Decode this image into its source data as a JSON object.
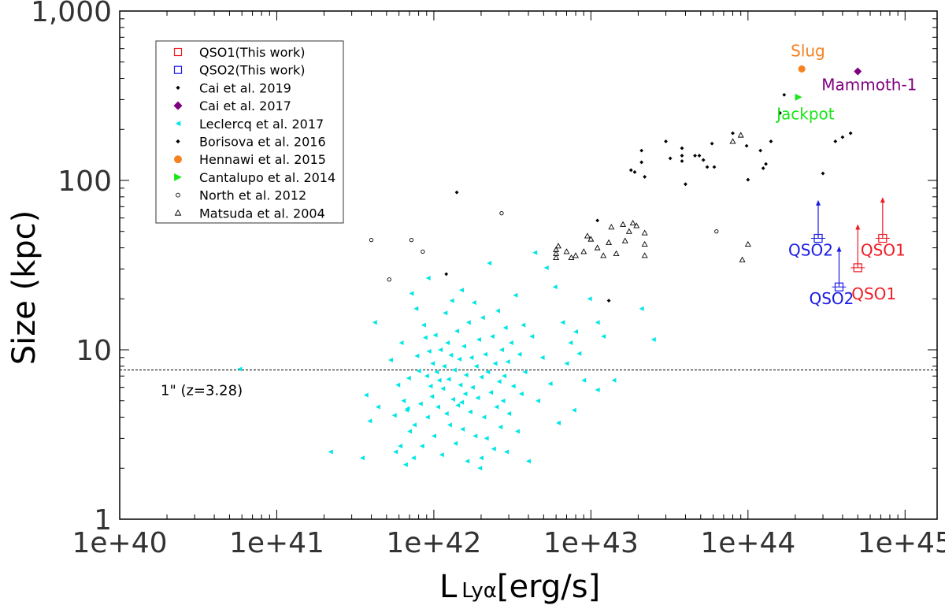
{
  "chart_data": {
    "type": "scatter",
    "xlabel": "L",
    "xlabel_sub": "Lyα",
    "xlabel_unit": "[erg/s]",
    "ylabel": "Size (kpc)",
    "x_scale": "log",
    "y_scale": "log",
    "xlim": [
      1e+40,
      1.6e+45
    ],
    "ylim": [
      1,
      1000
    ],
    "x_tick_labels": [
      "1e+40",
      "1e+41",
      "1e+42",
      "1e+43",
      "1e+44",
      "1e+45"
    ],
    "y_tick_labels": [
      "1",
      "10",
      "100",
      "1,000"
    ],
    "grid": false,
    "legend_position": "top-left",
    "reference_line": {
      "y": 7.6,
      "label": "1\" (z=3.28)"
    },
    "series": [
      {
        "name": "QSO1(This work)",
        "marker": "square-open",
        "color": "#ee1c25",
        "points": [
          {
            "x": 7.2e+44,
            "y": 45.5,
            "lower_limit_to": 78
          },
          {
            "x": 5e+44,
            "y": 30.5,
            "lower_limit_to": 54
          }
        ],
        "labels": [
          "QSO1",
          "QSO1"
        ]
      },
      {
        "name": "QSO2(This work)",
        "marker": "square-open",
        "color": "#1a1ae6",
        "points": [
          {
            "x": 2.8e+44,
            "y": 45.5,
            "lower_limit_to": 75
          },
          {
            "x": 3.8e+44,
            "y": 23.5,
            "lower_limit_to": 40
          }
        ],
        "labels": [
          "QSO2",
          "QSO2"
        ]
      },
      {
        "name": "Cai et al. 2019",
        "marker": "diamond-small",
        "color": "#000000",
        "points": [
          {
            "x": 1.4e+42,
            "y": 85
          },
          {
            "x": 1.2e+42,
            "y": 28
          },
          {
            "x": 1.1e+43,
            "y": 58
          },
          {
            "x": 1.3e+43,
            "y": 19.5
          },
          {
            "x": 3e+44,
            "y": 110
          },
          {
            "x": 4e+44,
            "y": 180
          },
          {
            "x": 3.6e+44,
            "y": 170
          },
          {
            "x": 4.5e+44,
            "y": 190
          },
          {
            "x": 1.7e+44,
            "y": 320
          }
        ]
      },
      {
        "name": "Cai et al. 2017",
        "marker": "diamond",
        "color": "#7f007f",
        "points": [
          {
            "x": 5e+44,
            "y": 440
          }
        ],
        "labels": [
          "Mammoth-1"
        ]
      },
      {
        "name": "Leclercq et al. 2017",
        "marker": "triangle-left",
        "color": "#00e6e6",
        "points": [
          {
            "x": 5.8e+40,
            "y": 7.7
          },
          {
            "x": 2.2e+41,
            "y": 2.5
          },
          {
            "x": 3.5e+41,
            "y": 2.3
          },
          {
            "x": 3.7e+41,
            "y": 5.4
          },
          {
            "x": 3.9e+41,
            "y": 3.8
          },
          {
            "x": 4.2e+41,
            "y": 14.5
          },
          {
            "x": 4.4e+41,
            "y": 4.6
          },
          {
            "x": 5.3e+41,
            "y": 8.7
          },
          {
            "x": 5.6e+41,
            "y": 4.1
          },
          {
            "x": 5.7e+41,
            "y": 2.5
          },
          {
            "x": 5.9e+41,
            "y": 6.2
          },
          {
            "x": 6.1e+41,
            "y": 2.7
          },
          {
            "x": 6.2e+41,
            "y": 11.0
          },
          {
            "x": 6.4e+41,
            "y": 5.0
          },
          {
            "x": 6.6e+41,
            "y": 2.1
          },
          {
            "x": 6.7e+41,
            "y": 4.4
          },
          {
            "x": 6.9e+41,
            "y": 6.8
          },
          {
            "x": 7e+41,
            "y": 3.3
          },
          {
            "x": 7.2e+41,
            "y": 21.5
          },
          {
            "x": 7.4e+41,
            "y": 2.3
          },
          {
            "x": 7.5e+41,
            "y": 3.6
          },
          {
            "x": 7.7e+41,
            "y": 17.5
          },
          {
            "x": 7.8e+41,
            "y": 9.2
          },
          {
            "x": 8e+41,
            "y": 7.5
          },
          {
            "x": 8.2e+41,
            "y": 4.8
          },
          {
            "x": 8.4e+41,
            "y": 2.7
          },
          {
            "x": 8.6e+41,
            "y": 14.0
          },
          {
            "x": 8.8e+41,
            "y": 11.8
          },
          {
            "x": 9e+41,
            "y": 7.0
          },
          {
            "x": 9.1e+41,
            "y": 4.0
          },
          {
            "x": 9.2e+41,
            "y": 26.5
          },
          {
            "x": 9.3e+41,
            "y": 9.8
          },
          {
            "x": 9.5e+41,
            "y": 6.1
          },
          {
            "x": 9.7e+41,
            "y": 5.3
          },
          {
            "x": 9.8e+41,
            "y": 8.3
          },
          {
            "x": 1e+42,
            "y": 3.1
          },
          {
            "x": 1.02e+42,
            "y": 12.2
          },
          {
            "x": 1.04e+42,
            "y": 7.4
          },
          {
            "x": 1.06e+42,
            "y": 4.6
          },
          {
            "x": 1.08e+42,
            "y": 6.6
          },
          {
            "x": 1.1e+42,
            "y": 10.0
          },
          {
            "x": 1.12e+42,
            "y": 2.4
          },
          {
            "x": 1.14e+42,
            "y": 5.9
          },
          {
            "x": 1.16e+42,
            "y": 8.0
          },
          {
            "x": 1.18e+42,
            "y": 16.5
          },
          {
            "x": 1.2e+42,
            "y": 4.2
          },
          {
            "x": 1.22e+42,
            "y": 11.0
          },
          {
            "x": 1.24e+42,
            "y": 6.7
          },
          {
            "x": 1.26e+42,
            "y": 3.6
          },
          {
            "x": 1.28e+42,
            "y": 9.3
          },
          {
            "x": 1.3e+42,
            "y": 19.5
          },
          {
            "x": 1.32e+42,
            "y": 5.1
          },
          {
            "x": 1.35e+42,
            "y": 7.6
          },
          {
            "x": 1.37e+42,
            "y": 2.8
          },
          {
            "x": 1.4e+42,
            "y": 12.9
          },
          {
            "x": 1.42e+42,
            "y": 4.7
          },
          {
            "x": 1.45e+42,
            "y": 8.8
          },
          {
            "x": 1.47e+42,
            "y": 6.2
          },
          {
            "x": 1.5e+42,
            "y": 22.5
          },
          {
            "x": 1.52e+42,
            "y": 3.4
          },
          {
            "x": 1.55e+42,
            "y": 10.5
          },
          {
            "x": 1.58e+42,
            "y": 5.5
          },
          {
            "x": 1.6e+42,
            "y": 7.1
          },
          {
            "x": 1.63e+42,
            "y": 2.2
          },
          {
            "x": 1.66e+42,
            "y": 14.5
          },
          {
            "x": 1.7e+42,
            "y": 4.3
          },
          {
            "x": 1.73e+42,
            "y": 9.0
          },
          {
            "x": 1.76e+42,
            "y": 6.0
          },
          {
            "x": 1.8e+42,
            "y": 19.0
          },
          {
            "x": 1.83e+42,
            "y": 3.1
          },
          {
            "x": 1.86e+42,
            "y": 8.0
          },
          {
            "x": 1.9e+42,
            "y": 5.2
          },
          {
            "x": 1.93e+42,
            "y": 11.5
          },
          {
            "x": 1.96e+42,
            "y": 2.0
          },
          {
            "x": 2e+42,
            "y": 6.9
          },
          {
            "x": 2.04e+42,
            "y": 15.5
          },
          {
            "x": 2.08e+42,
            "y": 4.0
          },
          {
            "x": 2.12e+42,
            "y": 9.4
          },
          {
            "x": 2.16e+42,
            "y": 3.0
          },
          {
            "x": 2.2e+42,
            "y": 7.4
          },
          {
            "x": 2.25e+42,
            "y": 32.5
          },
          {
            "x": 2.3e+42,
            "y": 5.6
          },
          {
            "x": 2.35e+42,
            "y": 12.0
          },
          {
            "x": 2.4e+42,
            "y": 2.6
          },
          {
            "x": 2.45e+42,
            "y": 8.3
          },
          {
            "x": 2.5e+42,
            "y": 4.6
          },
          {
            "x": 2.55e+42,
            "y": 17.0
          },
          {
            "x": 2.6e+42,
            "y": 6.5
          },
          {
            "x": 2.65e+42,
            "y": 3.5
          },
          {
            "x": 2.7e+42,
            "y": 10.0
          },
          {
            "x": 2.75e+42,
            "y": 5.0
          },
          {
            "x": 2.8e+42,
            "y": 7.0
          },
          {
            "x": 2.85e+42,
            "y": 13.5
          },
          {
            "x": 2.9e+42,
            "y": 2.5
          },
          {
            "x": 2.95e+42,
            "y": 8.5
          },
          {
            "x": 3e+42,
            "y": 4.2
          },
          {
            "x": 3.1e+42,
            "y": 11.0
          },
          {
            "x": 3.2e+42,
            "y": 6.1
          },
          {
            "x": 3.3e+42,
            "y": 21.0
          },
          {
            "x": 3.4e+42,
            "y": 3.3
          },
          {
            "x": 3.5e+42,
            "y": 9.4
          },
          {
            "x": 3.6e+42,
            "y": 5.5
          },
          {
            "x": 3.7e+42,
            "y": 14.0
          },
          {
            "x": 3.8e+42,
            "y": 7.4
          },
          {
            "x": 4e+42,
            "y": 2.2
          },
          {
            "x": 4.2e+42,
            "y": 12.0
          },
          {
            "x": 4.4e+42,
            "y": 37.5
          },
          {
            "x": 4.6e+42,
            "y": 5.0
          },
          {
            "x": 4.9e+42,
            "y": 9.0
          },
          {
            "x": 5.2e+42,
            "y": 30.5
          },
          {
            "x": 5.5e+42,
            "y": 6.3
          },
          {
            "x": 5.9e+42,
            "y": 23.5
          },
          {
            "x": 6.2e+42,
            "y": 3.7
          },
          {
            "x": 6.6e+42,
            "y": 14.5
          },
          {
            "x": 7e+42,
            "y": 8.3
          },
          {
            "x": 7.4e+42,
            "y": 11.0
          },
          {
            "x": 7.8e+42,
            "y": 4.4
          },
          {
            "x": 8.4e+42,
            "y": 9.5
          },
          {
            "x": 9e+42,
            "y": 6.6
          },
          {
            "x": 9.8e+42,
            "y": 20.0
          },
          {
            "x": 1.1e+43,
            "y": 5.8
          },
          {
            "x": 1.2e+43,
            "y": 12.0
          },
          {
            "x": 1.4e+43,
            "y": 6.6
          },
          {
            "x": 2.1e+43,
            "y": 17.5
          },
          {
            "x": 2.5e+43,
            "y": 11.5
          },
          {
            "x": 1.1e+43,
            "y": 14.5
          },
          {
            "x": 8e+42,
            "y": 12.8
          },
          {
            "x": 1.5e+42,
            "y": 4.9
          },
          {
            "x": 6.8e+41,
            "y": 4.5
          },
          {
            "x": 2e+42,
            "y": 2.3
          }
        ]
      },
      {
        "name": "Borisova et al. 2016",
        "marker": "diamond-small",
        "color": "#000000",
        "points": [
          {
            "x": 1.8e+43,
            "y": 115
          },
          {
            "x": 2.2e+43,
            "y": 105
          },
          {
            "x": 2.1e+43,
            "y": 128
          },
          {
            "x": 2.1e+43,
            "y": 150
          },
          {
            "x": 3.2e+43,
            "y": 135
          },
          {
            "x": 3e+43,
            "y": 170
          },
          {
            "x": 3.8e+43,
            "y": 155
          },
          {
            "x": 4e+43,
            "y": 95
          },
          {
            "x": 4.6e+43,
            "y": 140
          },
          {
            "x": 4.9e+43,
            "y": 140
          },
          {
            "x": 5.2e+43,
            "y": 132
          },
          {
            "x": 5.5e+43,
            "y": 120
          },
          {
            "x": 5.9e+43,
            "y": 165
          },
          {
            "x": 6.1e+43,
            "y": 120
          },
          {
            "x": 8e+43,
            "y": 190
          },
          {
            "x": 9.8e+43,
            "y": 160
          },
          {
            "x": 1e+44,
            "y": 101
          },
          {
            "x": 1.2e+44,
            "y": 150
          },
          {
            "x": 1.25e+44,
            "y": 118
          },
          {
            "x": 1.3e+44,
            "y": 125
          },
          {
            "x": 1.4e+44,
            "y": 170
          },
          {
            "x": 1.6e+44,
            "y": 250
          },
          {
            "x": 3.8e+43,
            "y": 140
          },
          {
            "x": 1.9e+43,
            "y": 112
          },
          {
            "x": 3.8e+43,
            "y": 130
          }
        ]
      },
      {
        "name": "Hennawi et al. 2015",
        "marker": "circle-filled",
        "color": "#f58220",
        "points": [
          {
            "x": 2.2e+44,
            "y": 455
          }
        ],
        "labels": [
          "Slug"
        ]
      },
      {
        "name": "Cantalupo et al. 2014",
        "marker": "triangle-right",
        "color": "#1ae61a",
        "points": [
          {
            "x": 2.1e+44,
            "y": 310
          }
        ],
        "labels": [
          "Jackpot"
        ]
      },
      {
        "name": "North et al. 2012",
        "marker": "circle-open",
        "color": "#000000",
        "points": [
          {
            "x": 4e+41,
            "y": 44.5
          },
          {
            "x": 5.2e+41,
            "y": 26
          },
          {
            "x": 7.2e+41,
            "y": 44.5
          },
          {
            "x": 8.5e+41,
            "y": 38
          },
          {
            "x": 2.7e+42,
            "y": 64
          },
          {
            "x": 6.3e+43,
            "y": 50
          }
        ]
      },
      {
        "name": "Matsuda et al. 2004",
        "marker": "triangle-open",
        "color": "#000000",
        "points": [
          {
            "x": 6e+42,
            "y": 39
          },
          {
            "x": 6e+42,
            "y": 35
          },
          {
            "x": 6e+42,
            "y": 37
          },
          {
            "x": 6.2e+42,
            "y": 41
          },
          {
            "x": 7e+42,
            "y": 38
          },
          {
            "x": 7.5e+42,
            "y": 35
          },
          {
            "x": 8e+42,
            "y": 36
          },
          {
            "x": 9e+42,
            "y": 38
          },
          {
            "x": 9.5e+42,
            "y": 47
          },
          {
            "x": 1e+43,
            "y": 45
          },
          {
            "x": 1.1e+43,
            "y": 40
          },
          {
            "x": 1.2e+43,
            "y": 36
          },
          {
            "x": 1.3e+43,
            "y": 43
          },
          {
            "x": 1.35e+43,
            "y": 53
          },
          {
            "x": 1.45e+43,
            "y": 37
          },
          {
            "x": 1.6e+43,
            "y": 55
          },
          {
            "x": 1.65e+43,
            "y": 44
          },
          {
            "x": 1.75e+43,
            "y": 50
          },
          {
            "x": 1.85e+43,
            "y": 56
          },
          {
            "x": 1.95e+43,
            "y": 54
          },
          {
            "x": 2.2e+43,
            "y": 49
          },
          {
            "x": 2.2e+43,
            "y": 42
          },
          {
            "x": 2.2e+43,
            "y": 36
          },
          {
            "x": 8e+43,
            "y": 170
          },
          {
            "x": 9e+43,
            "y": 185
          },
          {
            "x": 9.2e+43,
            "y": 34
          },
          {
            "x": 1e+44,
            "y": 42
          }
        ]
      }
    ]
  }
}
